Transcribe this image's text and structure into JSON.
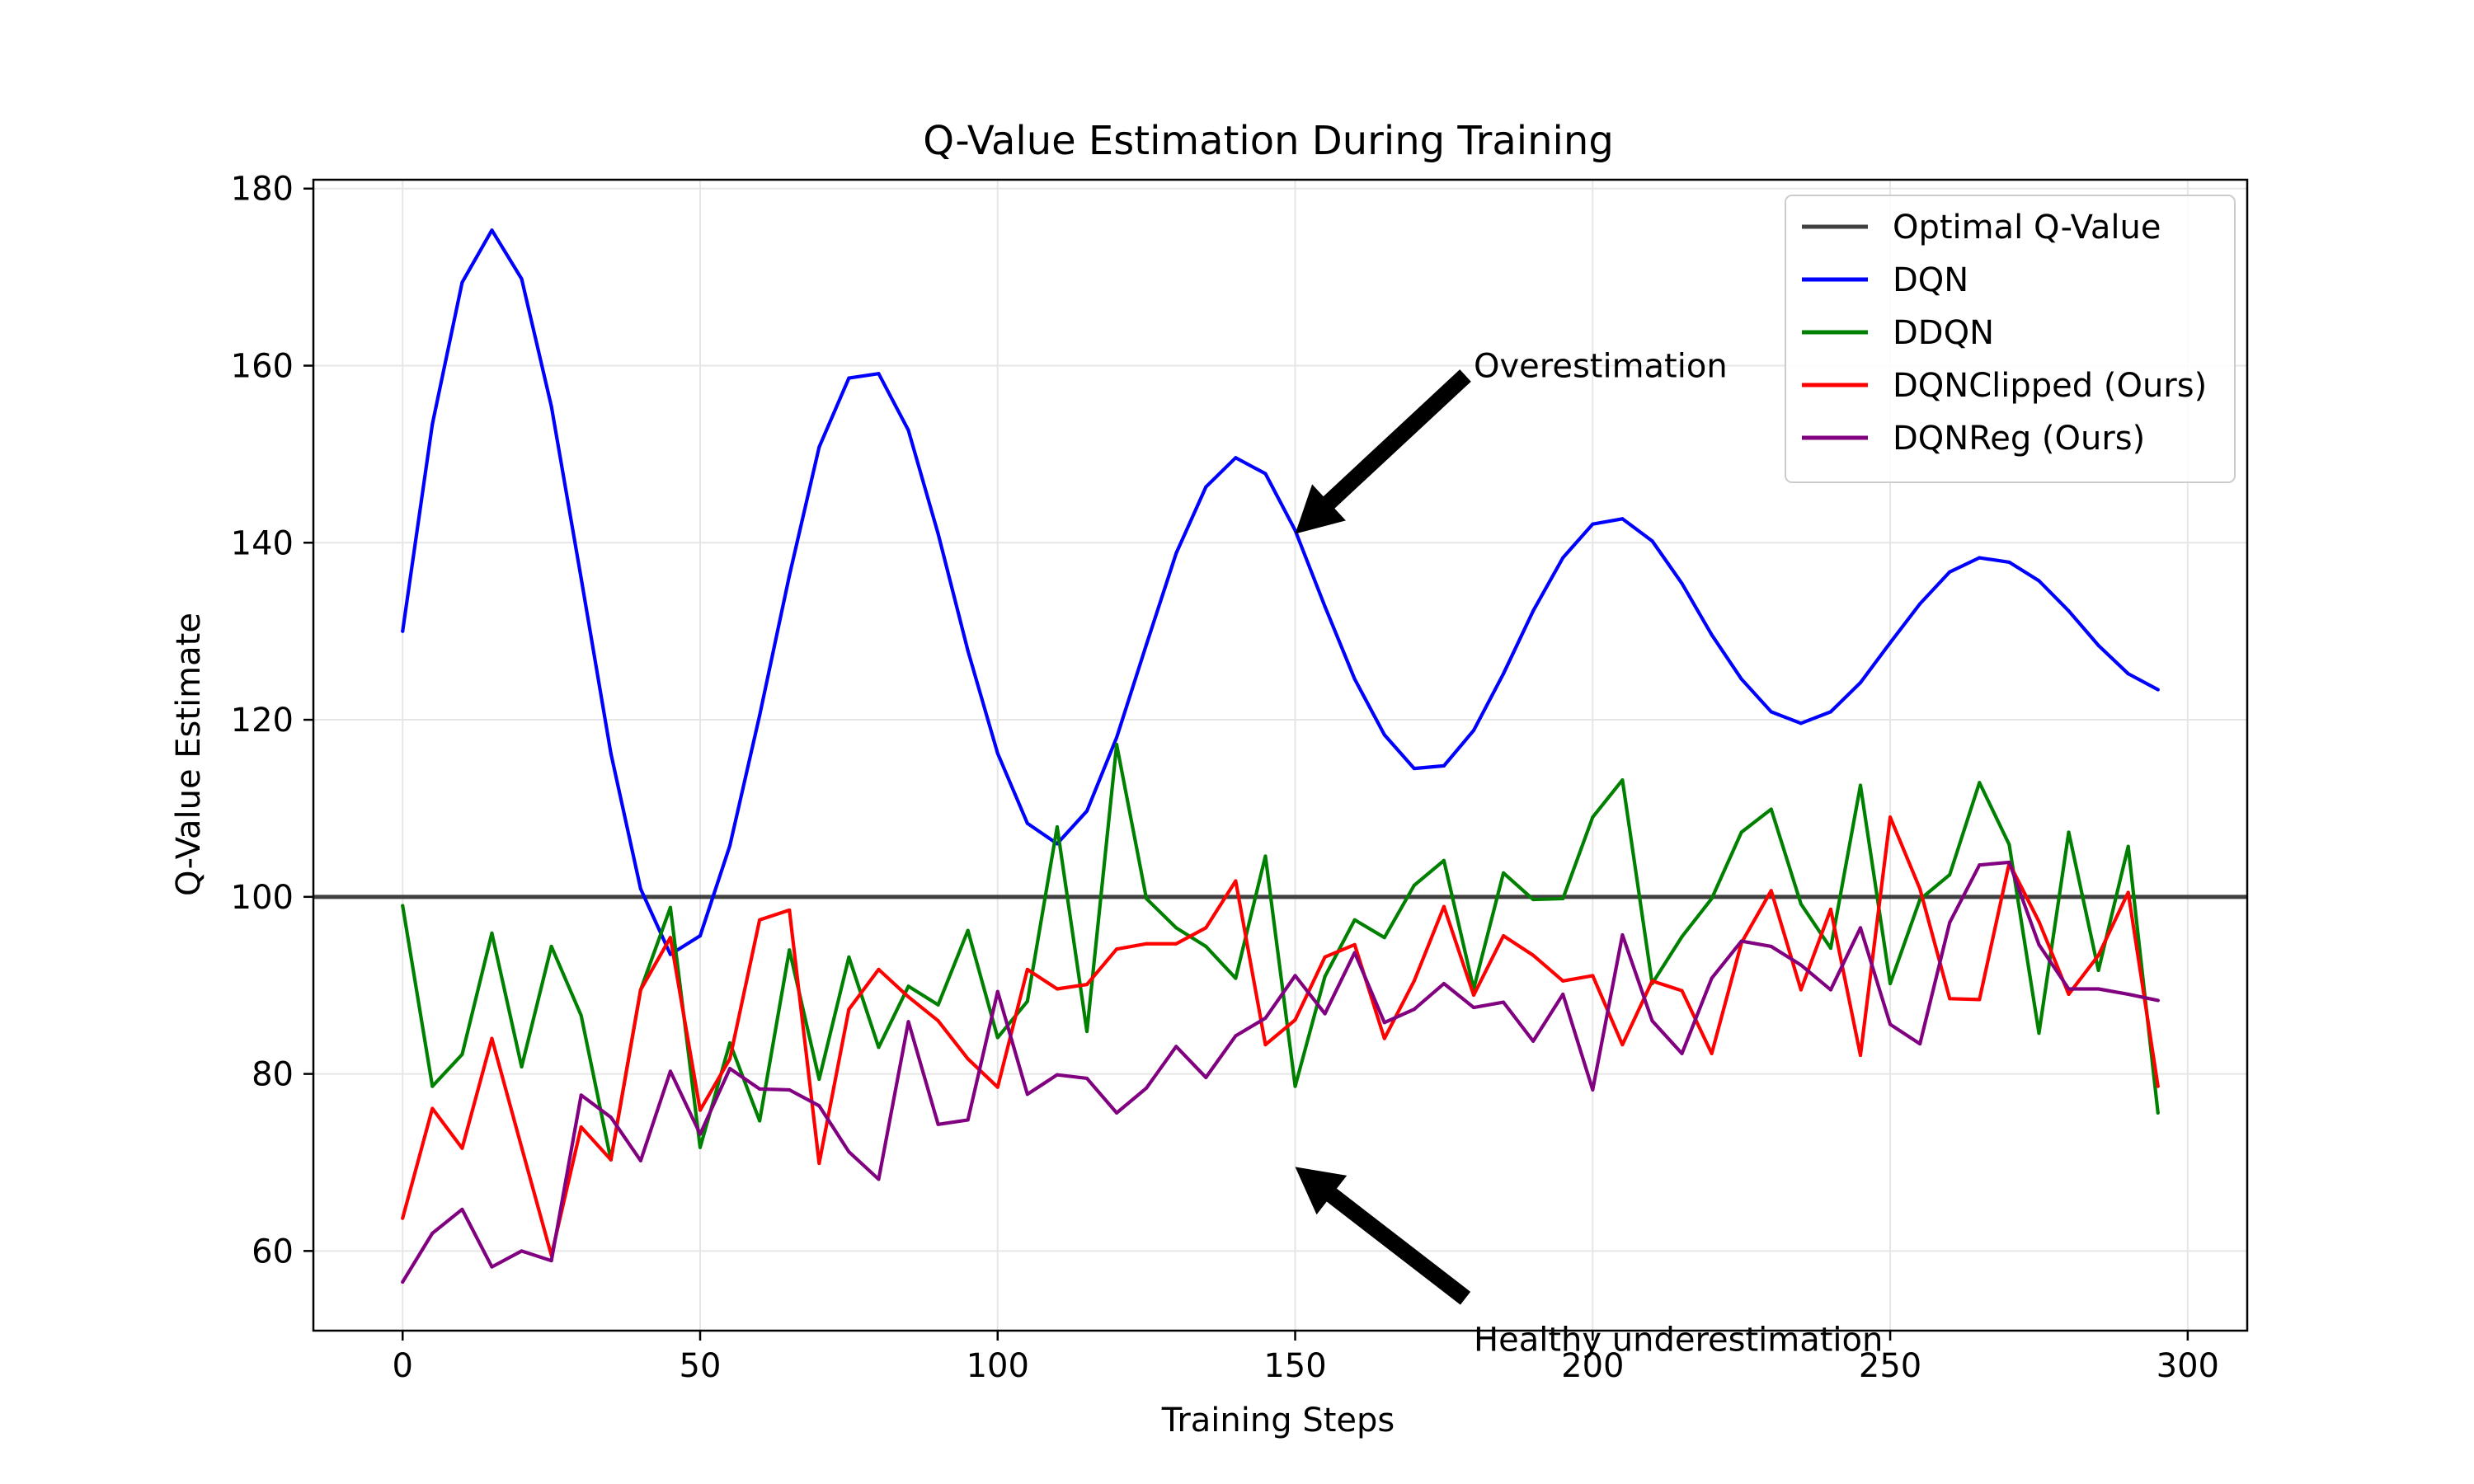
{
  "chart_data": {
    "type": "line",
    "title": "Q-Value Estimation During Training",
    "xlabel": "Training Steps",
    "ylabel": "Q-Value Estimate",
    "xlim": [
      -15,
      310
    ],
    "ylim": [
      51,
      181
    ],
    "xticks": [
      0,
      50,
      100,
      150,
      200,
      250,
      300
    ],
    "yticks": [
      60,
      80,
      100,
      120,
      140,
      160,
      180
    ],
    "grid": true,
    "legend_position": "top-right",
    "reference_line": {
      "name": "Optimal Q-Value",
      "y": 100,
      "color": "#404040"
    },
    "x": [
      0,
      5,
      10,
      15,
      20,
      25,
      30,
      35,
      40,
      45,
      50,
      55,
      60,
      65,
      70,
      75,
      80,
      85,
      90,
      95,
      100,
      105,
      110,
      115,
      120,
      125,
      130,
      135,
      140,
      145,
      150,
      155,
      160,
      165,
      170,
      175,
      180,
      185,
      190,
      195,
      200,
      205,
      210,
      215,
      220,
      225,
      230,
      235,
      240,
      245,
      250,
      255,
      260,
      265,
      270,
      275,
      280,
      285,
      290,
      295
    ],
    "series": [
      {
        "name": "DQN",
        "color": "#0000ff",
        "values": [
          130,
          153.4,
          169.4,
          175.3,
          169.8,
          155.4,
          136,
          116.2,
          100.9,
          93.5,
          95.6,
          105.8,
          120.5,
          136.3,
          150.8,
          158.6,
          159.1,
          152.7,
          141,
          127.8,
          116.2,
          108.3,
          106,
          109.7,
          118,
          128.5,
          138.8,
          146.3,
          149.6,
          147.8,
          141.4,
          132.8,
          124.6,
          118.3,
          114.5,
          114.8,
          118.8,
          125.2,
          132.3,
          138.3,
          142.1,
          142.7,
          140.2,
          135.4,
          129.6,
          124.6,
          120.9,
          119.6,
          120.9,
          124.2,
          128.7,
          133.1,
          136.7,
          138.3,
          137.8,
          135.7,
          132.3,
          128.4,
          125.2,
          123.4
        ]
      },
      {
        "name": "DDQN",
        "color": "#008000",
        "values": [
          99,
          78.6,
          82.2,
          95.9,
          80.8,
          94.4,
          86.6,
          70.3,
          89.5,
          98.8,
          71.7,
          83.5,
          74.7,
          94,
          79.4,
          93.2,
          83,
          89.9,
          87.8,
          96.2,
          84.1,
          88.2,
          107.9,
          84.8,
          117.2,
          99.8,
          96.5,
          94.4,
          90.8,
          104.6,
          78.6,
          91,
          97.4,
          95.4,
          101.3,
          104.1,
          89.6,
          102.7,
          99.7,
          99.8,
          109,
          113.2,
          90.2,
          95.5,
          99.8,
          107.3,
          109.9,
          99.2,
          94.2,
          112.6,
          90.2,
          99.7,
          102.5,
          112.9,
          105.9,
          84.6,
          107.3,
          91.7,
          105.7,
          75.6
        ]
      },
      {
        "name": "DQNClipped (Ours)",
        "color": "#ff0000",
        "values": [
          63.7,
          76.1,
          71.6,
          84,
          71.7,
          59.5,
          74,
          70.3,
          89.5,
          95.4,
          75.9,
          81.7,
          97.4,
          98.5,
          69.9,
          87.3,
          91.8,
          88.7,
          86,
          81.7,
          78.5,
          91.8,
          89.6,
          90.1,
          94.1,
          94.7,
          94.7,
          96.5,
          101.8,
          83.3,
          86.1,
          93.2,
          94.6,
          84,
          90.5,
          98.9,
          88.9,
          95.6,
          93.4,
          90.5,
          91.1,
          83.3,
          90.5,
          89.4,
          82.3,
          94.8,
          100.7,
          89.5,
          98.6,
          82.1,
          109,
          100.9,
          88.5,
          88.4,
          103.8,
          97.2,
          89,
          93.4,
          100.5,
          78.6
        ]
      },
      {
        "name": "DQNReg (Ours)",
        "color": "#800080",
        "values": [
          56.5,
          62,
          64.7,
          58.2,
          60,
          58.9,
          77.6,
          75.1,
          70.2,
          80.3,
          73.2,
          80.6,
          78.3,
          78.2,
          76.4,
          71.2,
          68.1,
          85.9,
          74.3,
          74.8,
          89.3,
          77.7,
          79.9,
          79.5,
          75.6,
          78.4,
          83.1,
          79.6,
          84.3,
          86.3,
          91.1,
          86.8,
          93.7,
          85.8,
          87.3,
          90.2,
          87.5,
          88.1,
          83.7,
          89,
          78.2,
          95.7,
          86,
          82.3,
          90.8,
          95,
          94.4,
          92.3,
          89.5,
          96.5,
          85.6,
          83.4,
          97.1,
          103.6,
          103.9,
          94.6,
          89.6,
          89.6,
          89,
          88.3
        ]
      }
    ],
    "annotations": [
      {
        "text": "Overestimation",
        "point": [
          150,
          141
        ],
        "text_at": [
          180,
          160
        ]
      },
      {
        "text": "Healthy underestimation",
        "point": [
          150,
          69.5
        ],
        "text_at": [
          180,
          50
        ]
      }
    ]
  }
}
